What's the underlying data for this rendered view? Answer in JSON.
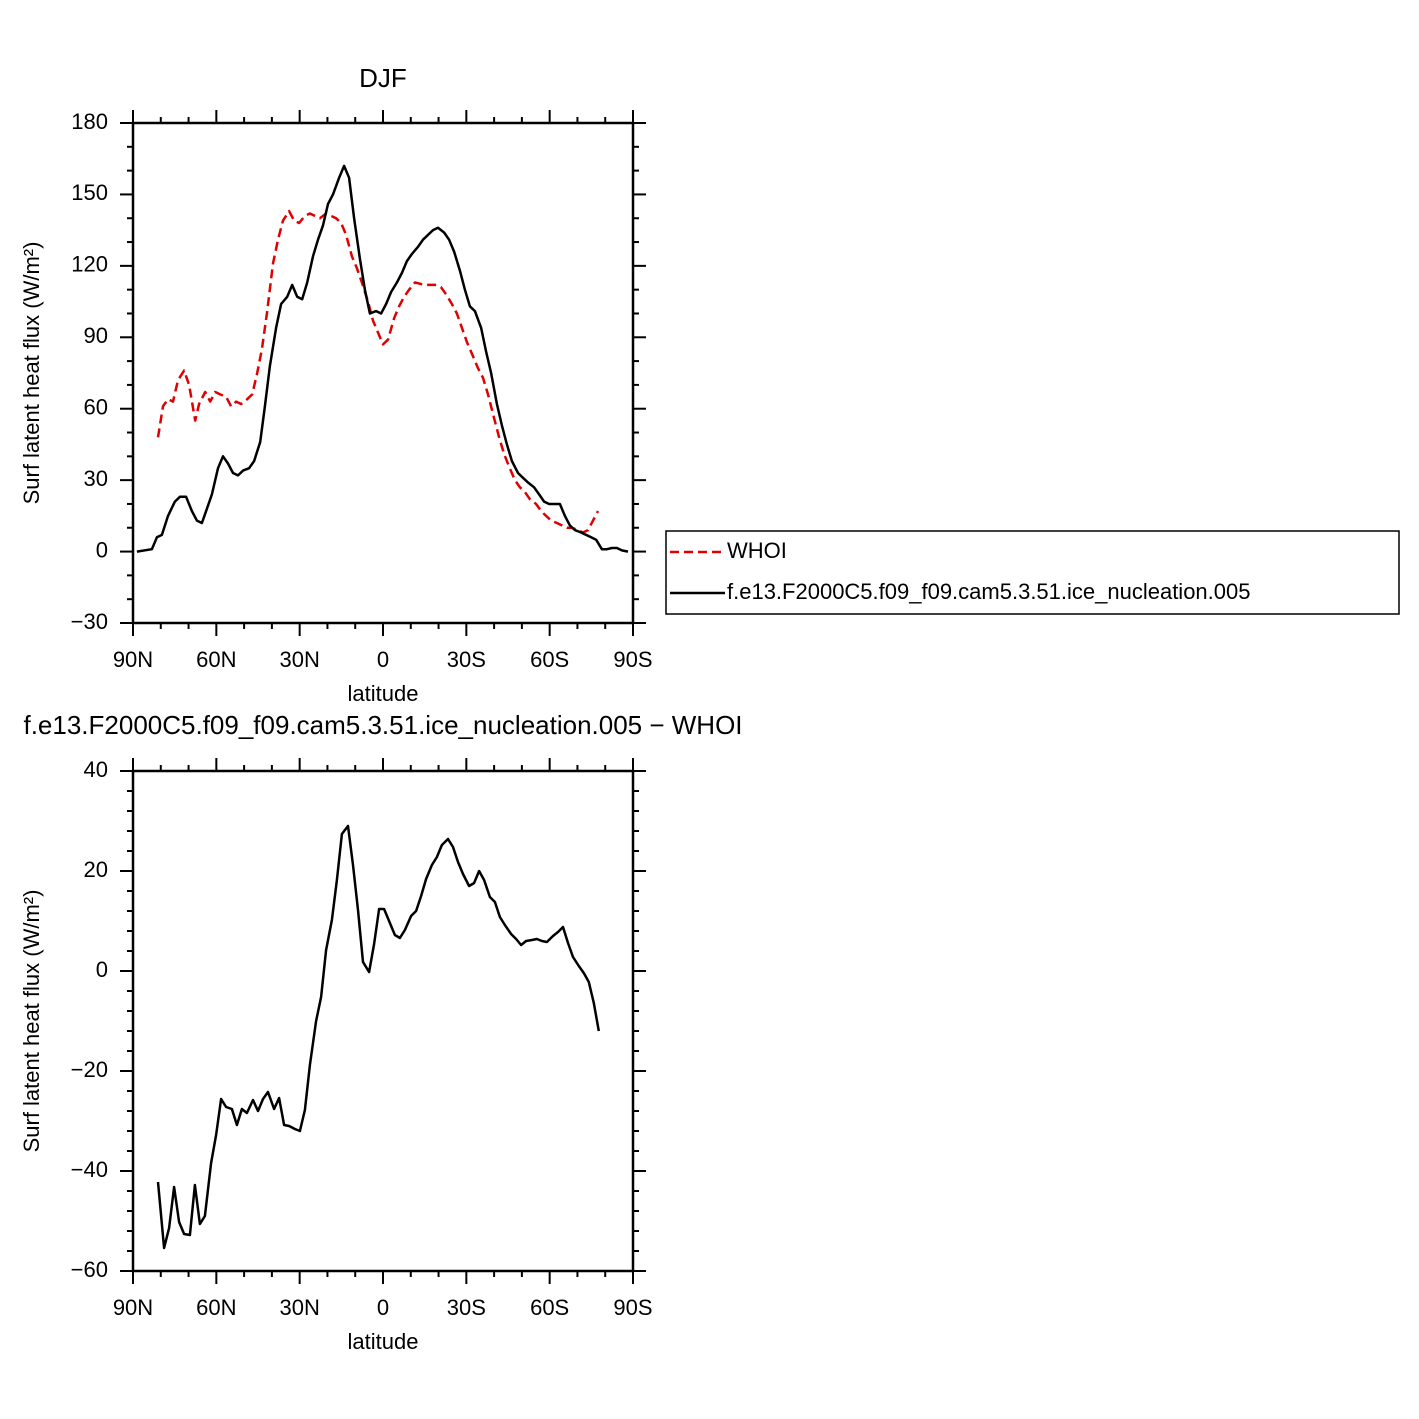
{
  "chart_data": [
    {
      "type": "line",
      "title": "DJF",
      "xlabel": "latitude",
      "ylabel": "Surf latent heat flux (W/m²)",
      "xlim": [
        90,
        -90
      ],
      "ylim": [
        -30,
        180
      ],
      "xticks": [
        {
          "value": 90,
          "label": "90N"
        },
        {
          "value": 60,
          "label": "60N"
        },
        {
          "value": 30,
          "label": "30N"
        },
        0,
        {
          "value": -30,
          "label": "30S"
        },
        {
          "value": -60,
          "label": "60S"
        },
        {
          "value": -90,
          "label": "90S"
        }
      ],
      "yticks": [
        {
          "value": -30,
          "label": "−30"
        },
        0,
        30,
        60,
        90,
        120,
        150,
        180
      ],
      "xminorticks": [
        80,
        70,
        50,
        40,
        20,
        10,
        -10,
        -20,
        -40,
        -50,
        -70,
        -80
      ],
      "yminorticks": [
        -20,
        -10,
        10,
        20,
        40,
        50,
        70,
        80,
        100,
        110,
        130,
        140,
        160,
        170
      ],
      "legend": true,
      "series": [
        {
          "name": "WHOI",
          "color": "#e00000",
          "dash": true,
          "x": [
            81.0,
            79.2,
            77.4,
            75.6,
            73.8,
            71.6,
            69.8,
            67.6,
            66.2,
            64.0,
            62.2,
            60.4,
            58.6,
            56.5,
            54.7,
            52.9,
            51.1,
            48.9,
            47.1,
            45.3,
            43.6,
            41.8,
            39.6,
            37.8,
            36.0,
            33.8,
            32.0,
            30.2,
            28.1,
            26.3,
            24.5,
            22.7,
            20.5,
            18.7,
            16.9,
            15.1,
            13.3,
            11.2,
            9.4,
            7.6,
            5.4,
            3.6,
            1.8,
            0.0,
            -1.8,
            -4.0,
            -5.8,
            -7.6,
            -9.4,
            -11.5,
            -13.3,
            -15.1,
            -19.1,
            -20.9,
            -22.7,
            -24.8,
            -26.6,
            -28.4,
            -30.2,
            -32.4,
            -34.2,
            -36.0,
            -37.8,
            -40.0,
            -41.8,
            -43.6,
            -45.3,
            -47.5,
            -49.3,
            -51.1,
            -52.9,
            -55.1,
            -56.9,
            -58.7,
            -60.5,
            -62.6,
            -64.4,
            -66.2,
            -68.0,
            -70.2,
            -72.0,
            -73.8,
            -75.6,
            -77.4
          ],
          "values": [
            48,
            61,
            64,
            63,
            72,
            76,
            70,
            55,
            62,
            67,
            63,
            67,
            66,
            65,
            61,
            63,
            62,
            64,
            66,
            75,
            85,
            100,
            121,
            131,
            139,
            143,
            139,
            138,
            141,
            142,
            141,
            140,
            142,
            141,
            140,
            138,
            133,
            124,
            119,
            113,
            105,
            97,
            92,
            87,
            89,
            98,
            103,
            107,
            110,
            113,
            112.5,
            112,
            112,
            111,
            108,
            104,
            100,
            94,
            88,
            82,
            77,
            73,
            66,
            56,
            48,
            41,
            36,
            30,
            27,
            25,
            22,
            20,
            17,
            15,
            13,
            12,
            11,
            10,
            10,
            9,
            8,
            9,
            13,
            17
          ]
        },
        {
          "name": "f.e13.F2000C5.f09_f09.cam5.3.51.ice_nucleation.005",
          "color": "#000000",
          "dash": false,
          "x": [
            88.6,
            83.2,
            81.4,
            79.6,
            77.4,
            74.9,
            73.1,
            70.9,
            68.8,
            67.0,
            65.2,
            63.7,
            61.6,
            59.4,
            57.6,
            55.8,
            54.0,
            52.2,
            50.4,
            48.2,
            46.4,
            44.2,
            42.5,
            40.7,
            38.5,
            36.7,
            34.5,
            32.7,
            30.9,
            29.1,
            27.3,
            25.2,
            23.4,
            21.6,
            19.8,
            18.0,
            15.8,
            14.0,
            12.2,
            10.4,
            8.3,
            6.5,
            4.7,
            2.5,
            0.7,
            -1.1,
            -2.9,
            -5.0,
            -6.8,
            -8.6,
            -10.4,
            -12.6,
            -14.4,
            -16.2,
            -18.0,
            -19.8,
            -22.0,
            -23.8,
            -25.6,
            -27.7,
            -29.5,
            -31.3,
            -33.1,
            -35.3,
            -37.1,
            -38.9,
            -41.0,
            -42.8,
            -44.6,
            -46.4,
            -48.6,
            -50.4,
            -52.2,
            -54.4,
            -56.2,
            -58.0,
            -59.8,
            -61.6,
            -63.7,
            -65.5,
            -67.3,
            -69.1,
            -71.3,
            -73.1,
            -74.9,
            -76.7,
            -78.8,
            -80.6,
            -82.4,
            -84.2,
            -86.0,
            -88.2
          ],
          "values": [
            0,
            1,
            6,
            7,
            15,
            21,
            23,
            23,
            17,
            13,
            12,
            17,
            24,
            35,
            40,
            37,
            33,
            32,
            34,
            35,
            38,
            46,
            61,
            78,
            94,
            104,
            107,
            112,
            107,
            106,
            113,
            124,
            131,
            137,
            146,
            150,
            157,
            162,
            157,
            140,
            123,
            110,
            100,
            101,
            100,
            104,
            109,
            113,
            117,
            122,
            125,
            128,
            131,
            133,
            135,
            136,
            134,
            131,
            126,
            118,
            110,
            103,
            101,
            94,
            84,
            75,
            62,
            53,
            45,
            38,
            33,
            31,
            29,
            27,
            24,
            21,
            20,
            20,
            20,
            15,
            11,
            9,
            8,
            7,
            6,
            5,
            1,
            1,
            1.5,
            1.5,
            0.5,
            0
          ]
        }
      ]
    },
    {
      "type": "line",
      "title": "f.e13.F2000C5.f09_f09.cam5.3.51.ice_nucleation.005 − WHOI",
      "xlabel": "latitude",
      "ylabel": "Surf latent heat flux (W/m²)",
      "xlim": [
        90,
        -90
      ],
      "ylim": [
        -60,
        40
      ],
      "xticks": [
        {
          "value": 90,
          "label": "90N"
        },
        {
          "value": 60,
          "label": "60N"
        },
        {
          "value": 30,
          "label": "30N"
        },
        0,
        {
          "value": -30,
          "label": "30S"
        },
        {
          "value": -60,
          "label": "60S"
        },
        {
          "value": -90,
          "label": "90S"
        }
      ],
      "yticks": [
        {
          "value": -60,
          "label": "−60"
        },
        {
          "value": -40,
          "label": "−40"
        },
        {
          "value": -20,
          "label": "−20"
        },
        0,
        20,
        40
      ],
      "xminorticks": [
        80,
        70,
        50,
        40,
        20,
        10,
        -10,
        -20,
        -40,
        -50,
        -70,
        -80
      ],
      "yminorticks": [
        -56,
        -52,
        -48,
        -44,
        -36,
        -32,
        -28,
        -24,
        -16,
        -12,
        -8,
        -4,
        4,
        8,
        12,
        16,
        24,
        28,
        32,
        36
      ],
      "legend": false,
      "series": [
        {
          "color": "#000000",
          "dash": false,
          "x": [
            81.0,
            78.8,
            77.0,
            75.2,
            73.4,
            71.6,
            69.5,
            67.7,
            65.9,
            64.1,
            61.9,
            60.1,
            58.3,
            56.5,
            54.4,
            52.6,
            50.8,
            49.0,
            46.8,
            45.0,
            43.2,
            41.4,
            39.2,
            37.4,
            35.6,
            33.8,
            31.7,
            29.9,
            28.1,
            26.3,
            24.1,
            22.3,
            20.5,
            18.4,
            16.6,
            14.8,
            12.6,
            10.8,
            9.0,
            7.2,
            5.0,
            3.2,
            1.4,
            -0.4,
            -2.5,
            -4.3,
            -6.1,
            -7.9,
            -10.1,
            -11.9,
            -13.7,
            -15.5,
            -17.6,
            -19.4,
            -21.2,
            -23.4,
            -25.2,
            -27.0,
            -28.8,
            -31.0,
            -32.8,
            -34.6,
            -36.4,
            -38.5,
            -40.3,
            -42.1,
            -43.9,
            -46.1,
            -47.9,
            -49.7,
            -51.5,
            -53.6,
            -55.4,
            -57.2,
            -59.0,
            -61.2,
            -63.0,
            -64.8,
            -66.6,
            -68.4,
            -70.5,
            -72.3,
            -74.1,
            -75.9,
            -77.7
          ],
          "values": [
            -42.2,
            -55.4,
            -51.4,
            -43.2,
            -50.2,
            -52.6,
            -52.8,
            -42.8,
            -50.6,
            -49,
            -38.4,
            -32.8,
            -25.6,
            -27.2,
            -27.6,
            -30.8,
            -27.6,
            -28.4,
            -25.8,
            -28,
            -25.6,
            -24.2,
            -27.6,
            -25.4,
            -30.8,
            -31,
            -31.6,
            -32,
            -27.8,
            -18.8,
            -10,
            -5.2,
            4.2,
            10.2,
            18.2,
            27.4,
            29,
            21.2,
            12.2,
            1.8,
            -0.2,
            5.4,
            12.4,
            12.4,
            9.6,
            7.2,
            6.6,
            8.2,
            11,
            12,
            15,
            18.4,
            21.2,
            22.8,
            25.2,
            26.4,
            24.8,
            21.8,
            19.4,
            17,
            17.6,
            20,
            18.2,
            14.8,
            13.8,
            10.8,
            9.2,
            7.4,
            6.4,
            5.2,
            6,
            6.2,
            6.4,
            6,
            5.8,
            7,
            7.8,
            8.8,
            5.6,
            2.8,
            1,
            -0.4,
            -2.2,
            -6.4,
            -12
          ]
        }
      ]
    }
  ]
}
